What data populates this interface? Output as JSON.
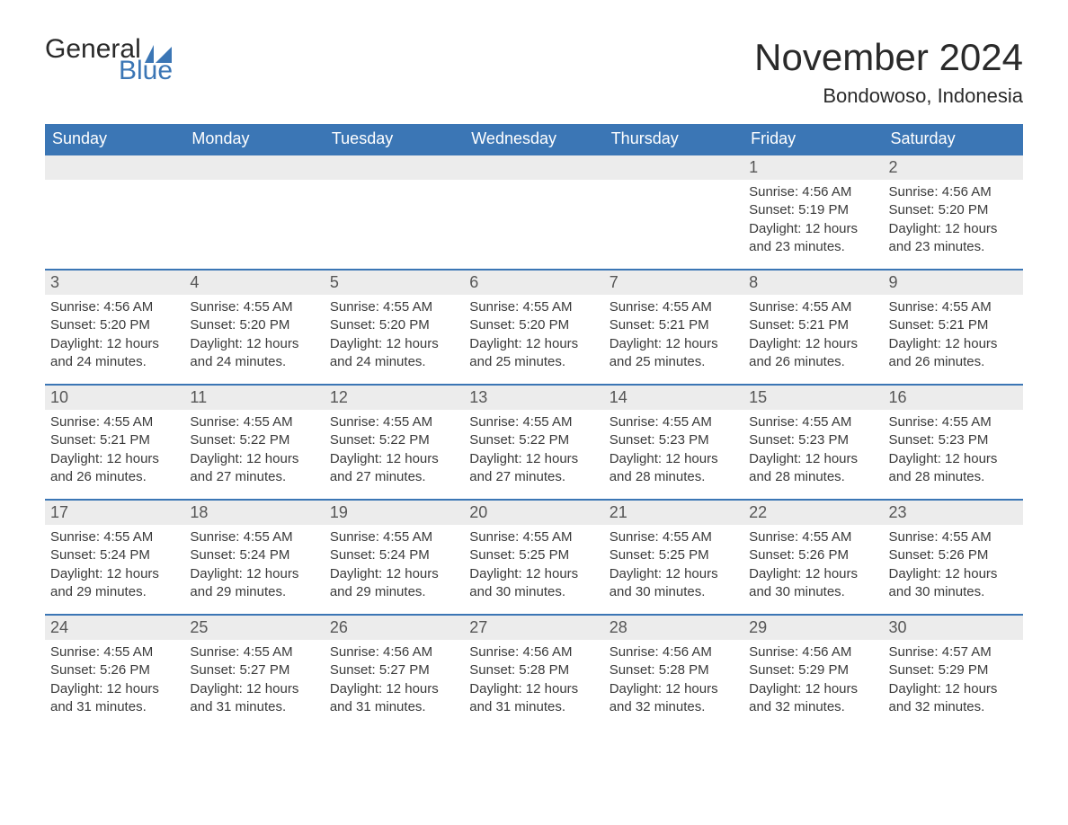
{
  "logo": {
    "general": "General",
    "blue": "Blue",
    "flag_color": "#3b76b5"
  },
  "title": "November 2024",
  "location": "Bondowoso, Indonesia",
  "colors": {
    "header_bg": "#3b76b5",
    "header_text": "#ffffff",
    "daynum_bg": "#ececec",
    "daynum_text": "#565656",
    "body_text": "#3a3a3a",
    "border": "#3b76b5"
  },
  "dow": [
    "Sunday",
    "Monday",
    "Tuesday",
    "Wednesday",
    "Thursday",
    "Friday",
    "Saturday"
  ],
  "weeks": [
    [
      null,
      null,
      null,
      null,
      null,
      {
        "n": "1",
        "sunrise": "4:56 AM",
        "sunset": "5:19 PM",
        "daylight": "12 hours and 23 minutes."
      },
      {
        "n": "2",
        "sunrise": "4:56 AM",
        "sunset": "5:20 PM",
        "daylight": "12 hours and 23 minutes."
      }
    ],
    [
      {
        "n": "3",
        "sunrise": "4:56 AM",
        "sunset": "5:20 PM",
        "daylight": "12 hours and 24 minutes."
      },
      {
        "n": "4",
        "sunrise": "4:55 AM",
        "sunset": "5:20 PM",
        "daylight": "12 hours and 24 minutes."
      },
      {
        "n": "5",
        "sunrise": "4:55 AM",
        "sunset": "5:20 PM",
        "daylight": "12 hours and 24 minutes."
      },
      {
        "n": "6",
        "sunrise": "4:55 AM",
        "sunset": "5:20 PM",
        "daylight": "12 hours and 25 minutes."
      },
      {
        "n": "7",
        "sunrise": "4:55 AM",
        "sunset": "5:21 PM",
        "daylight": "12 hours and 25 minutes."
      },
      {
        "n": "8",
        "sunrise": "4:55 AM",
        "sunset": "5:21 PM",
        "daylight": "12 hours and 26 minutes."
      },
      {
        "n": "9",
        "sunrise": "4:55 AM",
        "sunset": "5:21 PM",
        "daylight": "12 hours and 26 minutes."
      }
    ],
    [
      {
        "n": "10",
        "sunrise": "4:55 AM",
        "sunset": "5:21 PM",
        "daylight": "12 hours and 26 minutes."
      },
      {
        "n": "11",
        "sunrise": "4:55 AM",
        "sunset": "5:22 PM",
        "daylight": "12 hours and 27 minutes."
      },
      {
        "n": "12",
        "sunrise": "4:55 AM",
        "sunset": "5:22 PM",
        "daylight": "12 hours and 27 minutes."
      },
      {
        "n": "13",
        "sunrise": "4:55 AM",
        "sunset": "5:22 PM",
        "daylight": "12 hours and 27 minutes."
      },
      {
        "n": "14",
        "sunrise": "4:55 AM",
        "sunset": "5:23 PM",
        "daylight": "12 hours and 28 minutes."
      },
      {
        "n": "15",
        "sunrise": "4:55 AM",
        "sunset": "5:23 PM",
        "daylight": "12 hours and 28 minutes."
      },
      {
        "n": "16",
        "sunrise": "4:55 AM",
        "sunset": "5:23 PM",
        "daylight": "12 hours and 28 minutes."
      }
    ],
    [
      {
        "n": "17",
        "sunrise": "4:55 AM",
        "sunset": "5:24 PM",
        "daylight": "12 hours and 29 minutes."
      },
      {
        "n": "18",
        "sunrise": "4:55 AM",
        "sunset": "5:24 PM",
        "daylight": "12 hours and 29 minutes."
      },
      {
        "n": "19",
        "sunrise": "4:55 AM",
        "sunset": "5:24 PM",
        "daylight": "12 hours and 29 minutes."
      },
      {
        "n": "20",
        "sunrise": "4:55 AM",
        "sunset": "5:25 PM",
        "daylight": "12 hours and 30 minutes."
      },
      {
        "n": "21",
        "sunrise": "4:55 AM",
        "sunset": "5:25 PM",
        "daylight": "12 hours and 30 minutes."
      },
      {
        "n": "22",
        "sunrise": "4:55 AM",
        "sunset": "5:26 PM",
        "daylight": "12 hours and 30 minutes."
      },
      {
        "n": "23",
        "sunrise": "4:55 AM",
        "sunset": "5:26 PM",
        "daylight": "12 hours and 30 minutes."
      }
    ],
    [
      {
        "n": "24",
        "sunrise": "4:55 AM",
        "sunset": "5:26 PM",
        "daylight": "12 hours and 31 minutes."
      },
      {
        "n": "25",
        "sunrise": "4:55 AM",
        "sunset": "5:27 PM",
        "daylight": "12 hours and 31 minutes."
      },
      {
        "n": "26",
        "sunrise": "4:56 AM",
        "sunset": "5:27 PM",
        "daylight": "12 hours and 31 minutes."
      },
      {
        "n": "27",
        "sunrise": "4:56 AM",
        "sunset": "5:28 PM",
        "daylight": "12 hours and 31 minutes."
      },
      {
        "n": "28",
        "sunrise": "4:56 AM",
        "sunset": "5:28 PM",
        "daylight": "12 hours and 32 minutes."
      },
      {
        "n": "29",
        "sunrise": "4:56 AM",
        "sunset": "5:29 PM",
        "daylight": "12 hours and 32 minutes."
      },
      {
        "n": "30",
        "sunrise": "4:57 AM",
        "sunset": "5:29 PM",
        "daylight": "12 hours and 32 minutes."
      }
    ]
  ],
  "labels": {
    "sunrise": "Sunrise:",
    "sunset": "Sunset:",
    "daylight": "Daylight:"
  }
}
